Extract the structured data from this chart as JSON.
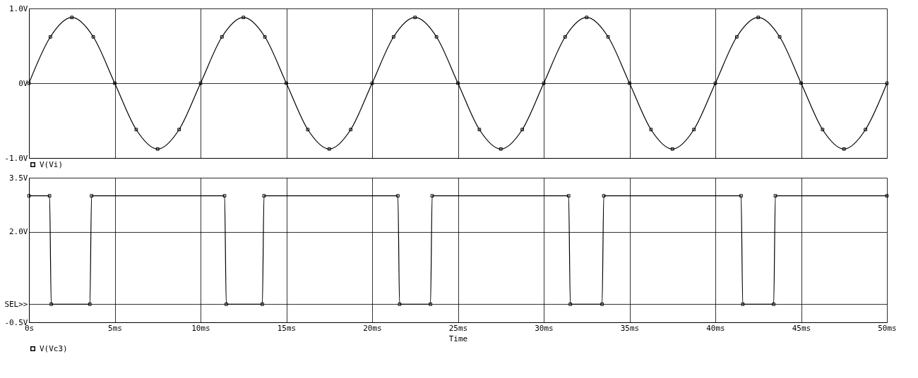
{
  "chart_data": [
    {
      "type": "line",
      "x": [
        0,
        1.25,
        2.5,
        3.75,
        5,
        6.25,
        7.5,
        8.75,
        10,
        11.25,
        12.5,
        13.75,
        15,
        16.25,
        17.5,
        18.75,
        20,
        21.25,
        22.5,
        23.75,
        25,
        26.25,
        27.5,
        28.75,
        30,
        31.25,
        32.5,
        33.75,
        35,
        36.25,
        37.5,
        38.75,
        40,
        41.25,
        42.5,
        43.75,
        45,
        46.25,
        47.5,
        48.75,
        50
      ],
      "series": [
        {
          "name": "V(Vi)",
          "color": "#000000",
          "values": [
            0,
            0.62,
            0.88,
            0.62,
            0,
            -0.62,
            -0.88,
            -0.62,
            0,
            0.62,
            0.88,
            0.62,
            0,
            -0.62,
            -0.88,
            -0.62,
            0,
            0.62,
            0.88,
            0.62,
            0,
            -0.62,
            -0.88,
            -0.62,
            0,
            0.62,
            0.88,
            0.62,
            0,
            -0.62,
            -0.88,
            -0.62,
            0,
            0.62,
            0.88,
            0.62,
            0,
            -0.62,
            -0.88,
            -0.62,
            0
          ]
        }
      ],
      "xlim": [
        0,
        50
      ],
      "xticks": [
        {
          "value": 0,
          "label": null
        },
        {
          "value": 5,
          "label": null
        },
        {
          "value": 10,
          "label": null
        },
        {
          "value": 15,
          "label": null
        },
        {
          "value": 20,
          "label": null
        },
        {
          "value": 25,
          "label": null
        },
        {
          "value": 30,
          "label": null
        },
        {
          "value": 35,
          "label": null
        },
        {
          "value": 40,
          "label": null
        },
        {
          "value": 45,
          "label": null
        },
        {
          "value": 50,
          "label": null
        }
      ],
      "ylim": [
        -1.0,
        1.0
      ],
      "yticks": [
        {
          "value": -1.0,
          "label": "-1.0V"
        },
        {
          "value": 0,
          "label": "0V"
        },
        {
          "value": 1.0,
          "label": "1.0V"
        }
      ],
      "tick_labels": "y",
      "grid": true,
      "legend": "bottom left",
      "marker": "square",
      "line_style": "solid"
    },
    {
      "type": "line",
      "x": [
        0,
        1.2,
        1.3,
        3.55,
        3.65,
        11.4,
        11.5,
        13.6,
        13.7,
        21.5,
        21.6,
        23.4,
        23.5,
        31.45,
        31.55,
        33.4,
        33.5,
        41.5,
        41.6,
        43.4,
        43.5,
        50
      ],
      "series": [
        {
          "name": "V(Vc3)",
          "color": "#000000",
          "values": [
            3.0,
            3.0,
            0,
            0,
            3.0,
            3.0,
            0,
            0,
            3.0,
            3.0,
            0,
            0,
            3.0,
            3.0,
            0,
            0,
            3.0,
            3.0,
            0,
            0,
            3.0,
            3.0
          ]
        }
      ],
      "xlim": [
        0,
        50
      ],
      "xticks": [
        {
          "value": 0,
          "label": "0s"
        },
        {
          "value": 5,
          "label": "5ms"
        },
        {
          "value": 10,
          "label": "10ms"
        },
        {
          "value": 15,
          "label": "15ms"
        },
        {
          "value": 20,
          "label": "20ms"
        },
        {
          "value": 25,
          "label": "25ms"
        },
        {
          "value": 30,
          "label": "30ms"
        },
        {
          "value": 35,
          "label": "35ms"
        },
        {
          "value": 40,
          "label": "40ms"
        },
        {
          "value": 45,
          "label": "45ms"
        },
        {
          "value": 50,
          "label": "50ms"
        }
      ],
      "ylim": [
        -0.5,
        3.5
      ],
      "yticks": [
        {
          "value": -0.5,
          "label": "-0.5V"
        },
        {
          "value": 0,
          "label": "SEL>>"
        },
        {
          "value": 2.0,
          "label": "2.0V"
        },
        {
          "value": 3.5,
          "label": "3.5V"
        }
      ],
      "xlabel": "Time",
      "grid": true,
      "legend": "bottom left",
      "marker": "square",
      "line_style": "solid"
    }
  ]
}
